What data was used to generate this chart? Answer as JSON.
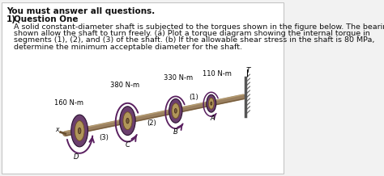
{
  "title_bold": "You must answer all questions.",
  "q_number": "1)",
  "q_title": "Question One",
  "line1": "A solid constant-diameter shaft is subjected to the torques shown in the figure below. The bearings",
  "line2": "shown allow the shaft to turn freely. (a) Plot a torque diagram showing the internal torque in",
  "line3": "segments (1), (2), and (3) of the shaft. (b) If the allowable shear stress in the shaft is 80 MPa,",
  "line4": "determine the minimum acceptable diameter for the shaft.",
  "torque_labels": [
    "160 N-m",
    "380 N-m",
    "330 N-m",
    "110 N-m"
  ],
  "seg_labels": [
    "(3)",
    "(2)",
    "(1)"
  ],
  "pt_labels": [
    "D",
    "C",
    "B",
    "A"
  ],
  "wall_label": "T",
  "x_label": "x",
  "disc_outer_color": "#6b3f6e",
  "disc_inner_color": "#b0965a",
  "disc_hub_color": "#7a6040",
  "shaft_color": "#9a8060",
  "shaft_dark": "#6a5030",
  "arrow_color": "#5a2060",
  "wall_color": "#555555",
  "bg_color": "#f2f2f2",
  "text_color": "#111111",
  "title_fontsize": 7.5,
  "body_fontsize": 6.8,
  "label_fontsize": 6.0
}
